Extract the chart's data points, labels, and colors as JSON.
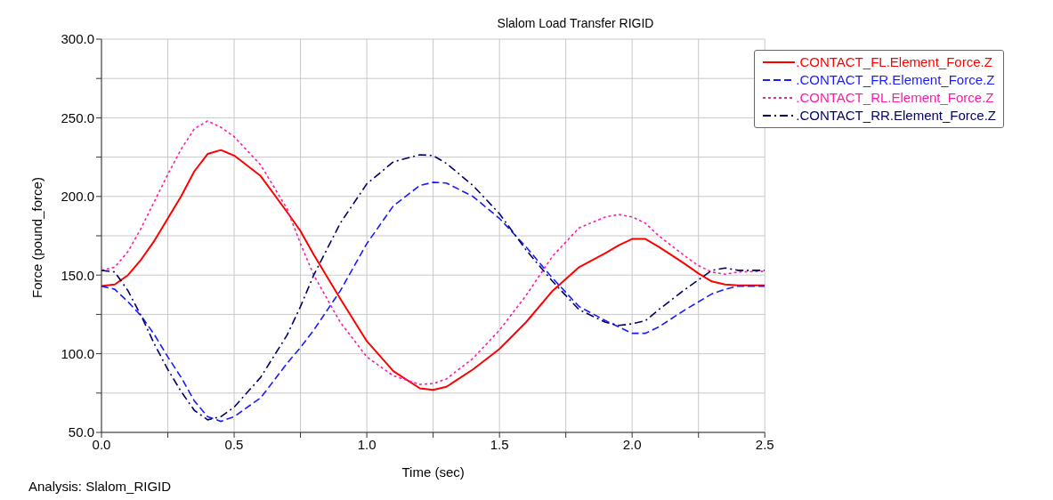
{
  "chart_data": {
    "type": "line",
    "title": "Slalom Load Transfer RIGID",
    "xlabel": "Time (sec)",
    "ylabel": "Force (pound_force)",
    "annotations": [
      "Analysis:  Slalom_RIGID"
    ],
    "x": [
      0,
      0.05,
      0.1,
      0.15,
      0.2,
      0.25,
      0.3,
      0.35,
      0.4,
      0.45,
      0.5,
      0.6,
      0.7,
      0.75,
      0.8,
      0.9,
      1.0,
      1.1,
      1.2,
      1.25,
      1.3,
      1.4,
      1.5,
      1.6,
      1.7,
      1.8,
      1.9,
      1.95,
      2.0,
      2.05,
      2.1,
      2.2,
      2.25,
      2.3,
      2.35,
      2.4,
      2.5
    ],
    "series": [
      {
        "name": ".CONTACT_FL.Element_Force.Z",
        "color": "#ff0000",
        "line_style": "solid",
        "values": [
          143,
          144,
          150,
          160,
          172,
          186,
          200,
          216,
          227,
          229.5,
          226,
          213,
          190,
          178,
          163,
          135,
          108,
          89,
          78,
          77,
          79,
          90,
          103,
          120,
          140,
          155,
          164,
          169,
          173,
          173,
          168,
          157,
          151,
          146,
          144,
          143.5,
          143.5
        ]
      },
      {
        "name": ".CONTACT_FR.Element_Force.Z",
        "color": "#1a1aff",
        "line_style": "dashed",
        "values": [
          143,
          141,
          133,
          124,
          112,
          98,
          85,
          70,
          60,
          57,
          60,
          72,
          94,
          104,
          115,
          140,
          170,
          194,
          207,
          209,
          208.5,
          200,
          186,
          168,
          148,
          130,
          121,
          117,
          113,
          113,
          117,
          128,
          133,
          138,
          141,
          143,
          143
        ]
      },
      {
        "name": ".CONTACT_RL.Element_Force.Z",
        "color": "#ff1aa8",
        "line_style": "dotted",
        "values": [
          153,
          155,
          165,
          180,
          197,
          214,
          230,
          243,
          248,
          244,
          238,
          220,
          192,
          170,
          150,
          120,
          98,
          86,
          80.5,
          81,
          84,
          97,
          115,
          137,
          162,
          180,
          187,
          188.5,
          187,
          183,
          175,
          162,
          156,
          152,
          150.5,
          152,
          152.5
        ]
      },
      {
        "name": ".CONTACT_RR.Element_Force.Z",
        "color": "#000066",
        "line_style": "dashdot",
        "values": [
          153,
          152,
          140,
          124,
          106,
          90,
          76,
          64,
          58,
          60,
          66,
          85,
          112,
          130,
          150,
          183,
          208,
          222,
          226.5,
          226,
          221,
          207,
          189,
          166,
          146,
          128,
          120,
          118,
          119,
          121,
          128,
          141,
          147,
          153,
          154.5,
          153,
          153
        ]
      }
    ],
    "xlim": [
      0,
      2.5
    ],
    "xticks": [
      {
        "value": 0,
        "label": "0.0"
      },
      {
        "value": 0.25,
        "label": null
      },
      {
        "value": 0.5,
        "label": "0.5"
      },
      {
        "value": 0.75,
        "label": null
      },
      {
        "value": 1,
        "label": "1.0"
      },
      {
        "value": 1.25,
        "label": null
      },
      {
        "value": 1.5,
        "label": "1.5"
      },
      {
        "value": 1.75,
        "label": null
      },
      {
        "value": 2,
        "label": "2.0"
      },
      {
        "value": 2.25,
        "label": null
      },
      {
        "value": 2.5,
        "label": "2.5"
      }
    ],
    "ylim": [
      50,
      300
    ],
    "yticks": [
      {
        "value": 50,
        "label": "50.0"
      },
      {
        "value": 75,
        "label": null
      },
      {
        "value": 100,
        "label": "100.0"
      },
      {
        "value": 125,
        "label": null
      },
      {
        "value": 150,
        "label": "150.0"
      },
      {
        "value": 175,
        "label": null
      },
      {
        "value": 200,
        "label": "200.0"
      },
      {
        "value": 225,
        "label": null
      },
      {
        "value": 250,
        "label": "250.0"
      },
      {
        "value": 275,
        "label": null
      },
      {
        "value": 300,
        "label": "300.0"
      }
    ],
    "grid": true,
    "legend": "top right",
    "marker": "none"
  }
}
